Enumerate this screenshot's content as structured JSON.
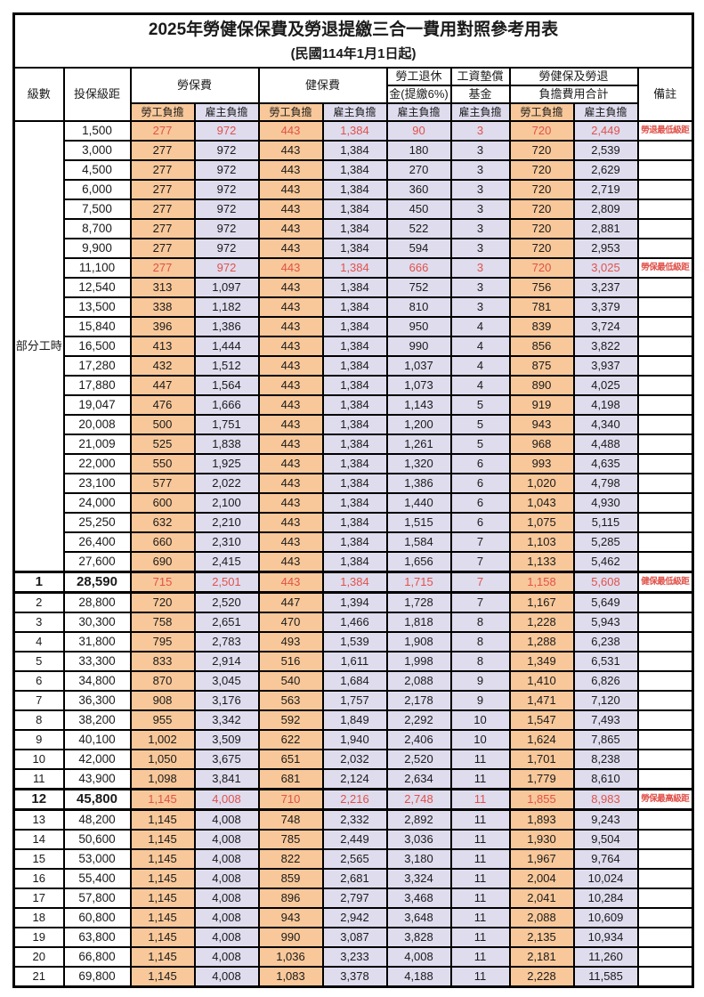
{
  "title": "2025年勞健保保費及勞退提繳三合一費用對照參考用表",
  "subtitle": "(民國114年1月1日起)",
  "header": {
    "level": "級數",
    "bracket": "投保級距",
    "labor_insurance": "勞保費",
    "health_insurance": "健保費",
    "pension_top": "勞工退休",
    "pension_bottom": "金(提繳6%)",
    "fund_top": "工資墊償",
    "fund_bottom": "基金",
    "total_top": "勞健保及勞退",
    "total_bottom": "負擔費用合計",
    "note": "備註",
    "employee": "勞工負擔",
    "employer": "雇主負擔"
  },
  "part_time_label": "部分工時",
  "colors": {
    "employee_bg": "#f8c89a",
    "employer_bg": "#dfdcee",
    "highlight_text": "#e0524a",
    "border": "#000000"
  },
  "rows": [
    {
      "l": "",
      "b": "1,500",
      "v": [
        "277",
        "972",
        "443",
        "1,384",
        "90",
        "3",
        "720",
        "2,449"
      ],
      "n": "勞退最低級距",
      "cls": "red"
    },
    {
      "l": "",
      "b": "3,000",
      "v": [
        "277",
        "972",
        "443",
        "1,384",
        "180",
        "3",
        "720",
        "2,539"
      ],
      "n": "",
      "cls": ""
    },
    {
      "l": "",
      "b": "4,500",
      "v": [
        "277",
        "972",
        "443",
        "1,384",
        "270",
        "3",
        "720",
        "2,629"
      ],
      "n": "",
      "cls": ""
    },
    {
      "l": "",
      "b": "6,000",
      "v": [
        "277",
        "972",
        "443",
        "1,384",
        "360",
        "3",
        "720",
        "2,719"
      ],
      "n": "",
      "cls": ""
    },
    {
      "l": "",
      "b": "7,500",
      "v": [
        "277",
        "972",
        "443",
        "1,384",
        "450",
        "3",
        "720",
        "2,809"
      ],
      "n": "",
      "cls": ""
    },
    {
      "l": "",
      "b": "8,700",
      "v": [
        "277",
        "972",
        "443",
        "1,384",
        "522",
        "3",
        "720",
        "2,881"
      ],
      "n": "",
      "cls": ""
    },
    {
      "l": "",
      "b": "9,900",
      "v": [
        "277",
        "972",
        "443",
        "1,384",
        "594",
        "3",
        "720",
        "2,953"
      ],
      "n": "",
      "cls": ""
    },
    {
      "l": "",
      "b": "11,100",
      "v": [
        "277",
        "972",
        "443",
        "1,384",
        "666",
        "3",
        "720",
        "3,025"
      ],
      "n": "勞保最低級距",
      "cls": "red"
    },
    {
      "l": "",
      "b": "12,540",
      "v": [
        "313",
        "1,097",
        "443",
        "1,384",
        "752",
        "3",
        "756",
        "3,237"
      ],
      "n": "",
      "cls": ""
    },
    {
      "l": "",
      "b": "13,500",
      "v": [
        "338",
        "1,182",
        "443",
        "1,384",
        "810",
        "3",
        "781",
        "3,379"
      ],
      "n": "",
      "cls": ""
    },
    {
      "l": "",
      "b": "15,840",
      "v": [
        "396",
        "1,386",
        "443",
        "1,384",
        "950",
        "4",
        "839",
        "3,724"
      ],
      "n": "",
      "cls": ""
    },
    {
      "l": "",
      "b": "16,500",
      "v": [
        "413",
        "1,444",
        "443",
        "1,384",
        "990",
        "4",
        "856",
        "3,822"
      ],
      "n": "",
      "cls": ""
    },
    {
      "l": "",
      "b": "17,280",
      "v": [
        "432",
        "1,512",
        "443",
        "1,384",
        "1,037",
        "4",
        "875",
        "3,937"
      ],
      "n": "",
      "cls": ""
    },
    {
      "l": "",
      "b": "17,880",
      "v": [
        "447",
        "1,564",
        "443",
        "1,384",
        "1,073",
        "4",
        "890",
        "4,025"
      ],
      "n": "",
      "cls": ""
    },
    {
      "l": "",
      "b": "19,047",
      "v": [
        "476",
        "1,666",
        "443",
        "1,384",
        "1,143",
        "5",
        "919",
        "4,198"
      ],
      "n": "",
      "cls": ""
    },
    {
      "l": "",
      "b": "20,008",
      "v": [
        "500",
        "1,751",
        "443",
        "1,384",
        "1,200",
        "5",
        "943",
        "4,340"
      ],
      "n": "",
      "cls": ""
    },
    {
      "l": "",
      "b": "21,009",
      "v": [
        "525",
        "1,838",
        "443",
        "1,384",
        "1,261",
        "5",
        "968",
        "4,488"
      ],
      "n": "",
      "cls": ""
    },
    {
      "l": "",
      "b": "22,000",
      "v": [
        "550",
        "1,925",
        "443",
        "1,384",
        "1,320",
        "6",
        "993",
        "4,635"
      ],
      "n": "",
      "cls": ""
    },
    {
      "l": "",
      "b": "23,100",
      "v": [
        "577",
        "2,022",
        "443",
        "1,384",
        "1,386",
        "6",
        "1,020",
        "4,798"
      ],
      "n": "",
      "cls": ""
    },
    {
      "l": "",
      "b": "24,000",
      "v": [
        "600",
        "2,100",
        "443",
        "1,384",
        "1,440",
        "6",
        "1,043",
        "4,930"
      ],
      "n": "",
      "cls": ""
    },
    {
      "l": "",
      "b": "25,250",
      "v": [
        "632",
        "2,210",
        "443",
        "1,384",
        "1,515",
        "6",
        "1,075",
        "5,115"
      ],
      "n": "",
      "cls": ""
    },
    {
      "l": "",
      "b": "26,400",
      "v": [
        "660",
        "2,310",
        "443",
        "1,384",
        "1,584",
        "7",
        "1,103",
        "5,285"
      ],
      "n": "",
      "cls": ""
    },
    {
      "l": "",
      "b": "27,600",
      "v": [
        "690",
        "2,415",
        "443",
        "1,384",
        "1,656",
        "7",
        "1,133",
        "5,462"
      ],
      "n": "",
      "cls": ""
    },
    {
      "l": "1",
      "b": "28,590",
      "v": [
        "715",
        "2,501",
        "443",
        "1,384",
        "1,715",
        "7",
        "1,158",
        "5,608"
      ],
      "n": "健保最低級距",
      "cls": "key"
    },
    {
      "l": "2",
      "b": "28,800",
      "v": [
        "720",
        "2,520",
        "447",
        "1,394",
        "1,728",
        "7",
        "1,167",
        "5,649"
      ],
      "n": "",
      "cls": ""
    },
    {
      "l": "3",
      "b": "30,300",
      "v": [
        "758",
        "2,651",
        "470",
        "1,466",
        "1,818",
        "8",
        "1,228",
        "5,943"
      ],
      "n": "",
      "cls": ""
    },
    {
      "l": "4",
      "b": "31,800",
      "v": [
        "795",
        "2,783",
        "493",
        "1,539",
        "1,908",
        "8",
        "1,288",
        "6,238"
      ],
      "n": "",
      "cls": ""
    },
    {
      "l": "5",
      "b": "33,300",
      "v": [
        "833",
        "2,914",
        "516",
        "1,611",
        "1,998",
        "8",
        "1,349",
        "6,531"
      ],
      "n": "",
      "cls": ""
    },
    {
      "l": "6",
      "b": "34,800",
      "v": [
        "870",
        "3,045",
        "540",
        "1,684",
        "2,088",
        "9",
        "1,410",
        "6,826"
      ],
      "n": "",
      "cls": ""
    },
    {
      "l": "7",
      "b": "36,300",
      "v": [
        "908",
        "3,176",
        "563",
        "1,757",
        "2,178",
        "9",
        "1,471",
        "7,120"
      ],
      "n": "",
      "cls": ""
    },
    {
      "l": "8",
      "b": "38,200",
      "v": [
        "955",
        "3,342",
        "592",
        "1,849",
        "2,292",
        "10",
        "1,547",
        "7,493"
      ],
      "n": "",
      "cls": ""
    },
    {
      "l": "9",
      "b": "40,100",
      "v": [
        "1,002",
        "3,509",
        "622",
        "1,940",
        "2,406",
        "10",
        "1,624",
        "7,865"
      ],
      "n": "",
      "cls": ""
    },
    {
      "l": "10",
      "b": "42,000",
      "v": [
        "1,050",
        "3,675",
        "651",
        "2,032",
        "2,520",
        "11",
        "1,701",
        "8,238"
      ],
      "n": "",
      "cls": ""
    },
    {
      "l": "11",
      "b": "43,900",
      "v": [
        "1,098",
        "3,841",
        "681",
        "2,124",
        "2,634",
        "11",
        "1,779",
        "8,610"
      ],
      "n": "",
      "cls": ""
    },
    {
      "l": "12",
      "b": "45,800",
      "v": [
        "1,145",
        "4,008",
        "710",
        "2,216",
        "2,748",
        "11",
        "1,855",
        "8,983"
      ],
      "n": "勞保最高級距",
      "cls": "key"
    },
    {
      "l": "13",
      "b": "48,200",
      "v": [
        "1,145",
        "4,008",
        "748",
        "2,332",
        "2,892",
        "11",
        "1,893",
        "9,243"
      ],
      "n": "",
      "cls": ""
    },
    {
      "l": "14",
      "b": "50,600",
      "v": [
        "1,145",
        "4,008",
        "785",
        "2,449",
        "3,036",
        "11",
        "1,930",
        "9,504"
      ],
      "n": "",
      "cls": ""
    },
    {
      "l": "15",
      "b": "53,000",
      "v": [
        "1,145",
        "4,008",
        "822",
        "2,565",
        "3,180",
        "11",
        "1,967",
        "9,764"
      ],
      "n": "",
      "cls": ""
    },
    {
      "l": "16",
      "b": "55,400",
      "v": [
        "1,145",
        "4,008",
        "859",
        "2,681",
        "3,324",
        "11",
        "2,004",
        "10,024"
      ],
      "n": "",
      "cls": ""
    },
    {
      "l": "17",
      "b": "57,800",
      "v": [
        "1,145",
        "4,008",
        "896",
        "2,797",
        "3,468",
        "11",
        "2,041",
        "10,284"
      ],
      "n": "",
      "cls": ""
    },
    {
      "l": "18",
      "b": "60,800",
      "v": [
        "1,145",
        "4,008",
        "943",
        "2,942",
        "3,648",
        "11",
        "2,088",
        "10,609"
      ],
      "n": "",
      "cls": ""
    },
    {
      "l": "19",
      "b": "63,800",
      "v": [
        "1,145",
        "4,008",
        "990",
        "3,087",
        "3,828",
        "11",
        "2,135",
        "10,934"
      ],
      "n": "",
      "cls": ""
    },
    {
      "l": "20",
      "b": "66,800",
      "v": [
        "1,145",
        "4,008",
        "1,036",
        "3,233",
        "4,008",
        "11",
        "2,181",
        "11,260"
      ],
      "n": "",
      "cls": ""
    },
    {
      "l": "21",
      "b": "69,800",
      "v": [
        "1,145",
        "4,008",
        "1,083",
        "3,378",
        "4,188",
        "11",
        "2,228",
        "11,585"
      ],
      "n": "",
      "cls": ""
    }
  ]
}
